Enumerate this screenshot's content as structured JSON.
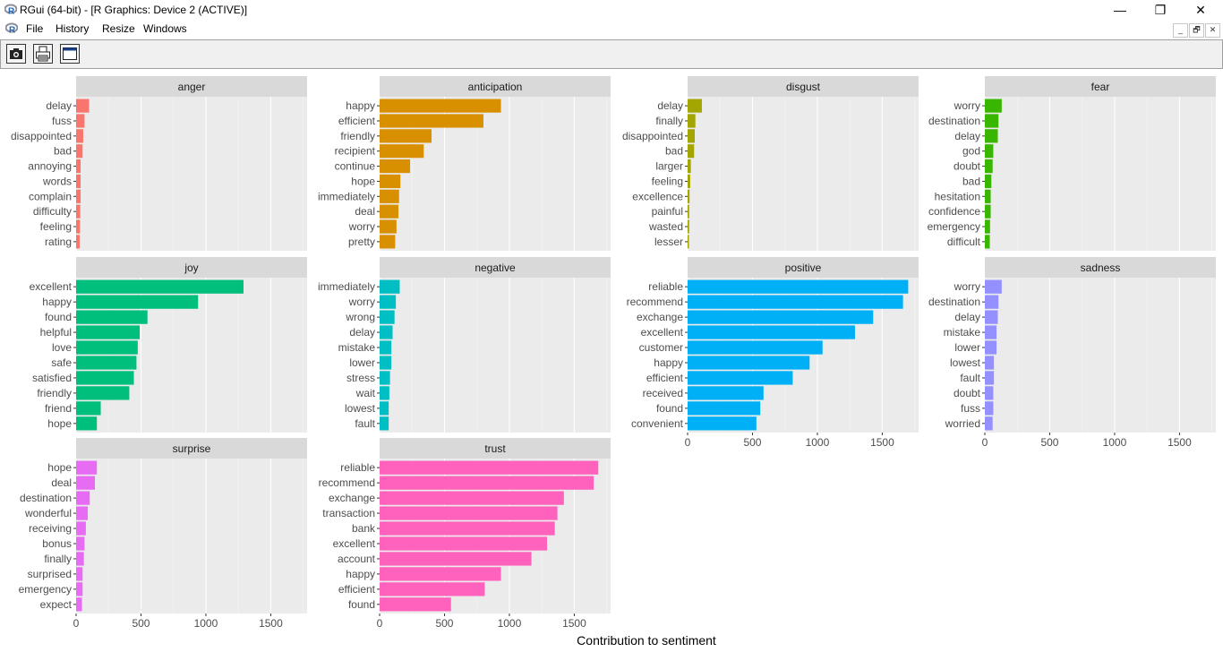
{
  "window": {
    "title": "RGui (64-bit) - [R Graphics: Device 2 (ACTIVE)]",
    "minimize": "—",
    "maximize": "❐",
    "close": "✕"
  },
  "menu": {
    "items": [
      "File",
      "History",
      "Resize",
      "Windows"
    ]
  },
  "mdi_controls": [
    "_",
    "🗗",
    "✕"
  ],
  "toolbar": {
    "buttons": [
      "camera-icon",
      "printer-icon",
      "window-icon"
    ]
  },
  "colors": {
    "anger": "#F8766D",
    "anticipation": "#D89000",
    "disgust": "#A3A500",
    "fear": "#39B600",
    "joy": "#00BF7D",
    "negative": "#00BFC4",
    "positive": "#00B0F6",
    "sadness": "#9590FF",
    "surprise": "#E76BF3",
    "trust": "#FF62BC"
  },
  "chart_data": {
    "type": "bar",
    "orientation": "horizontal",
    "facet": "wrap",
    "xlabel": "Contribution to sentiment",
    "xlim": [
      0,
      1780
    ],
    "xticks": [
      0,
      500,
      1000,
      1500
    ],
    "panels": [
      {
        "name": "anger",
        "categories": [
          "delay",
          "fuss",
          "disappointed",
          "bad",
          "annoying",
          "words",
          "complain",
          "difficulty",
          "feeling",
          "rating"
        ],
        "values": [
          100,
          65,
          55,
          50,
          35,
          35,
          35,
          32,
          30,
          28
        ]
      },
      {
        "name": "anticipation",
        "categories": [
          "happy",
          "efficient",
          "friendly",
          "recipient",
          "continue",
          "hope",
          "immediately",
          "deal",
          "worry",
          "pretty"
        ],
        "values": [
          935,
          800,
          400,
          340,
          235,
          160,
          150,
          145,
          130,
          120
        ]
      },
      {
        "name": "disgust",
        "categories": [
          "delay",
          "finally",
          "disappointed",
          "bad",
          "larger",
          "feeling",
          "excellence",
          "painful",
          "wasted",
          "lesser"
        ],
        "values": [
          110,
          60,
          55,
          50,
          25,
          20,
          15,
          12,
          12,
          10
        ]
      },
      {
        "name": "fear",
        "categories": [
          "worry",
          "destination",
          "delay",
          "god",
          "doubt",
          "bad",
          "hesitation",
          "confidence",
          "emergency",
          "difficult"
        ],
        "values": [
          130,
          105,
          100,
          65,
          60,
          50,
          45,
          45,
          40,
          38
        ]
      },
      {
        "name": "joy",
        "categories": [
          "excellent",
          "happy",
          "found",
          "helpful",
          "love",
          "safe",
          "satisfied",
          "friendly",
          "friend",
          "hope"
        ],
        "values": [
          1290,
          940,
          550,
          490,
          475,
          465,
          445,
          410,
          190,
          160
        ]
      },
      {
        "name": "negative",
        "categories": [
          "immediately",
          "worry",
          "wrong",
          "delay",
          "mistake",
          "lower",
          "stress",
          "wait",
          "lowest",
          "fault"
        ],
        "values": [
          155,
          125,
          115,
          100,
          90,
          90,
          80,
          75,
          70,
          70
        ]
      },
      {
        "name": "positive",
        "categories": [
          "reliable",
          "recommend",
          "exchange",
          "excellent",
          "customer",
          "happy",
          "efficient",
          "received",
          "found",
          "convenient"
        ],
        "values": [
          1700,
          1660,
          1430,
          1290,
          1040,
          940,
          810,
          585,
          560,
          530
        ]
      },
      {
        "name": "sadness",
        "categories": [
          "worry",
          "destination",
          "delay",
          "mistake",
          "lower",
          "lowest",
          "fault",
          "doubt",
          "fuss",
          "worried"
        ],
        "values": [
          130,
          105,
          100,
          90,
          90,
          70,
          70,
          65,
          65,
          60
        ]
      },
      {
        "name": "surprise",
        "categories": [
          "hope",
          "deal",
          "destination",
          "wonderful",
          "receiving",
          "bonus",
          "finally",
          "surprised",
          "emergency",
          "expect"
        ],
        "values": [
          160,
          145,
          105,
          90,
          75,
          65,
          60,
          50,
          50,
          45
        ]
      },
      {
        "name": "trust",
        "categories": [
          "reliable",
          "recommend",
          "exchange",
          "transaction",
          "bank",
          "excellent",
          "account",
          "happy",
          "efficient",
          "found"
        ],
        "values": [
          1685,
          1650,
          1420,
          1370,
          1350,
          1290,
          1170,
          935,
          810,
          550
        ]
      }
    ]
  }
}
